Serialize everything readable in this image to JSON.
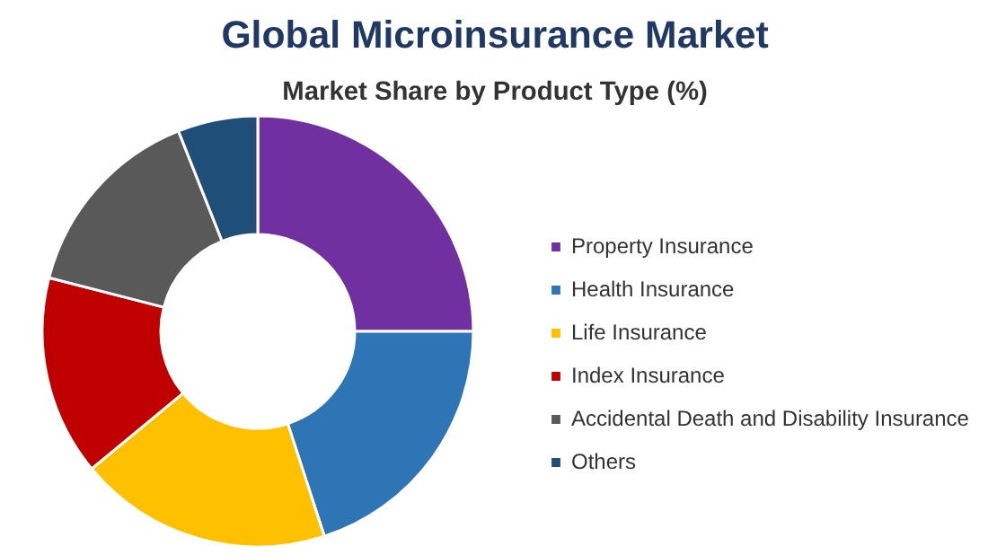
{
  "chart_data": {
    "type": "donut",
    "title": "Global Microinsurance Market",
    "subtitle": "Market Share by Product Type (%)",
    "categories": [
      "Property Insurance",
      "Health Insurance",
      "Life Insurance",
      "Index Insurance",
      "Accidental Death and Disability Insurance",
      "Others"
    ],
    "values": [
      25,
      20,
      19,
      15,
      15,
      6
    ],
    "colors": [
      "#7030a0",
      "#2e75b6",
      "#ffc000",
      "#c00000",
      "#595959",
      "#1f4e79"
    ],
    "legend": "right"
  }
}
